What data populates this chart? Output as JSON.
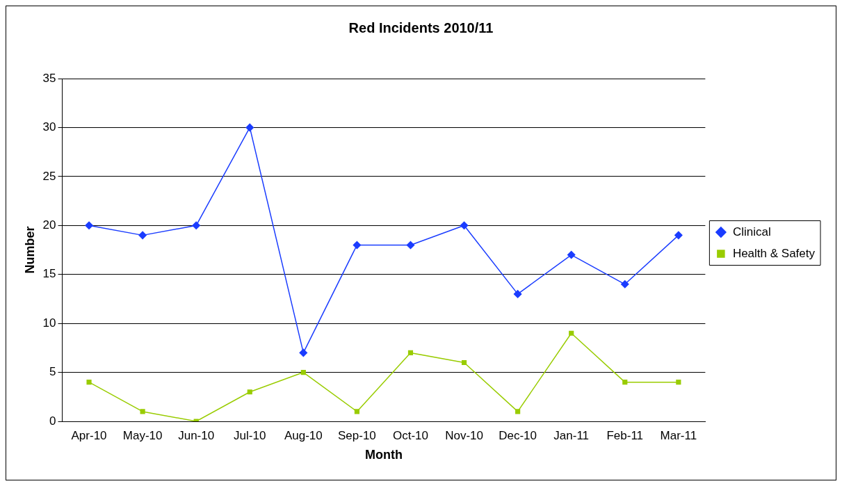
{
  "chart_data": {
    "type": "line",
    "title": "Red Incidents 2010/11",
    "xlabel": "Month",
    "ylabel": "Number",
    "categories": [
      "Apr-10",
      "May-10",
      "Jun-10",
      "Jul-10",
      "Aug-10",
      "Sep-10",
      "Oct-10",
      "Nov-10",
      "Dec-10",
      "Jan-11",
      "Feb-11",
      "Mar-11"
    ],
    "series": [
      {
        "name": "Clinical",
        "color": "#1a3cff",
        "marker": "diamond",
        "values": [
          20,
          19,
          20,
          30,
          7,
          18,
          18,
          20,
          13,
          17,
          14,
          19
        ]
      },
      {
        "name": "Health & Safety",
        "color": "#99cc00",
        "marker": "square",
        "values": [
          4,
          1,
          0,
          3,
          5,
          1,
          7,
          6,
          1,
          9,
          4,
          4
        ]
      }
    ],
    "ylim": [
      0,
      35
    ],
    "yticks": [
      0,
      5,
      10,
      15,
      20,
      25,
      30,
      35
    ],
    "grid": "y",
    "legend": "right",
    "line_style": "solid"
  }
}
